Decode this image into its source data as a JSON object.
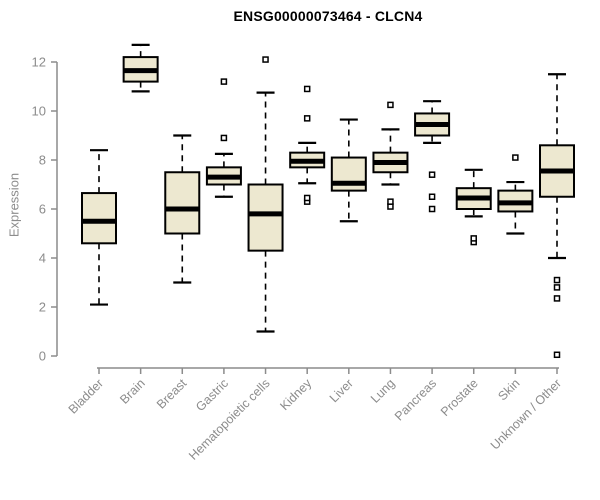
{
  "chart_data": {
    "type": "boxplot",
    "title": "ENSG00000073464 - CLCN4",
    "xlabel": "",
    "ylabel": "Expression",
    "ylim": [
      0,
      12
    ],
    "yticks": [
      0,
      2,
      4,
      6,
      8,
      10,
      12
    ],
    "grid": false,
    "legend": "none",
    "categories": [
      "Bladder",
      "Brain",
      "Breast",
      "Gastric",
      "Hematopoietic cells",
      "Kidney",
      "Liver",
      "Lung",
      "Pancreas",
      "Prostate",
      "Skin",
      "Unknown / Other"
    ],
    "series": [
      {
        "name": "Bladder",
        "whisker_low": 2.1,
        "q1": 4.6,
        "median": 5.5,
        "q3": 6.65,
        "whisker_high": 8.4,
        "outliers": []
      },
      {
        "name": "Brain",
        "whisker_low": 10.8,
        "q1": 11.2,
        "median": 11.65,
        "q3": 12.2,
        "whisker_high": 12.7,
        "outliers": []
      },
      {
        "name": "Breast",
        "whisker_low": 3.0,
        "q1": 5.0,
        "median": 6.0,
        "q3": 7.5,
        "whisker_high": 9.0,
        "outliers": []
      },
      {
        "name": "Gastric",
        "whisker_low": 6.5,
        "q1": 7.0,
        "median": 7.3,
        "q3": 7.7,
        "whisker_high": 8.25,
        "outliers": [
          8.9,
          11.2
        ]
      },
      {
        "name": "Hematopoietic cells",
        "whisker_low": 1.0,
        "q1": 4.3,
        "median": 5.8,
        "q3": 7.0,
        "whisker_high": 10.75,
        "outliers": [
          12.1
        ]
      },
      {
        "name": "Kidney",
        "whisker_low": 7.05,
        "q1": 7.7,
        "median": 7.95,
        "q3": 8.3,
        "whisker_high": 8.7,
        "outliers": [
          6.3,
          6.45,
          9.7,
          10.9
        ]
      },
      {
        "name": "Liver",
        "whisker_low": 5.5,
        "q1": 6.75,
        "median": 7.05,
        "q3": 8.1,
        "whisker_high": 9.65,
        "outliers": []
      },
      {
        "name": "Lung",
        "whisker_low": 7.0,
        "q1": 7.5,
        "median": 7.9,
        "q3": 8.3,
        "whisker_high": 9.25,
        "outliers": [
          6.1,
          6.3,
          10.25
        ]
      },
      {
        "name": "Pancreas",
        "whisker_low": 8.7,
        "q1": 9.0,
        "median": 9.45,
        "q3": 9.9,
        "whisker_high": 10.4,
        "outliers": [
          6.0,
          6.5,
          7.4
        ]
      },
      {
        "name": "Prostate",
        "whisker_low": 5.7,
        "q1": 6.0,
        "median": 6.45,
        "q3": 6.85,
        "whisker_high": 7.6,
        "outliers": [
          4.65,
          4.8
        ]
      },
      {
        "name": "Skin",
        "whisker_low": 5.0,
        "q1": 5.9,
        "median": 6.25,
        "q3": 6.75,
        "whisker_high": 7.1,
        "outliers": [
          8.1
        ]
      },
      {
        "name": "Unknown / Other",
        "whisker_low": 4.0,
        "q1": 6.5,
        "median": 7.55,
        "q3": 8.6,
        "whisker_high": 11.5,
        "outliers": [
          0.05,
          2.35,
          2.8,
          3.1
        ]
      }
    ],
    "colors": {
      "box_fill": "#EDE8D0",
      "box_stroke": "#000000",
      "median": "#000000",
      "whisker": "#000000",
      "outlier_stroke": "#000000",
      "outlier_fill": "#FFFFFF",
      "axis": "#8C8C8C",
      "tick_label": "#8C8C8C",
      "title": "#000000",
      "background": "#FFFFFF"
    }
  }
}
